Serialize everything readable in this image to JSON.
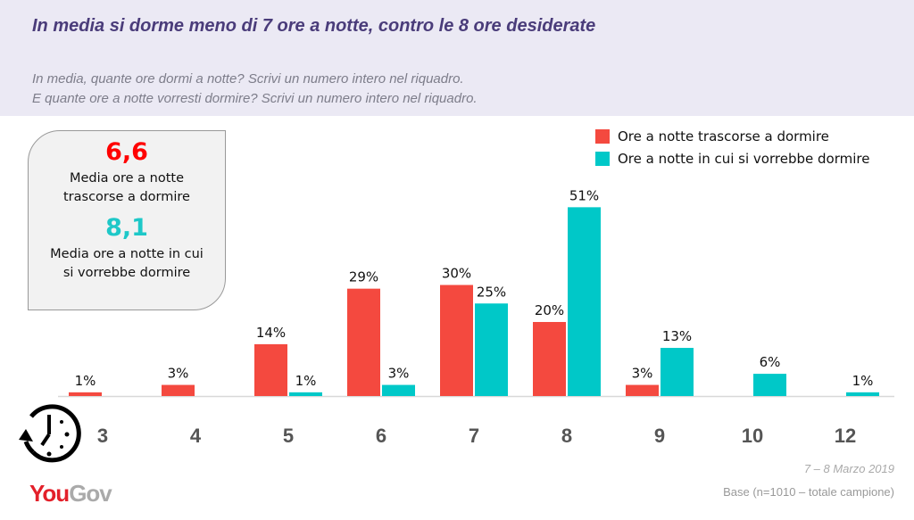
{
  "header": {
    "title": "In media si dorme meno di 7 ore a notte, contro le 8 ore desiderate",
    "question1": "In media, quante ore dormi a notte? Scrivi un numero intero nel riquadro.",
    "question2": "E quante ore a notte vorresti dormire? Scrivi un numero intero nel riquadro."
  },
  "summary": {
    "mean_actual": "6,6",
    "mean_actual_label": "Media ore a notte trascorse a dormire",
    "mean_desired": "8,1",
    "mean_desired_label": "Media ore a notte in cui si vorrebbe dormire"
  },
  "footer": {
    "date": "7 – 8 Marzo 2019",
    "base": "Base (n=1010 – totale campione)",
    "logo": "YouGov"
  },
  "colors": {
    "actual": "#f4493f",
    "desired": "#00c8c8"
  },
  "chart_data": {
    "type": "bar",
    "categories": [
      "3",
      "4",
      "5",
      "6",
      "7",
      "8",
      "9",
      "10",
      "12"
    ],
    "series": [
      {
        "name": "Ore a notte trascorse a dormire",
        "values": [
          1,
          3,
          14,
          29,
          30,
          20,
          3,
          null,
          null
        ]
      },
      {
        "name": "Ore a notte in cui si vorrebbe dormire",
        "values": [
          null,
          null,
          1,
          3,
          25,
          51,
          13,
          6,
          1
        ]
      }
    ],
    "unit": "%",
    "legend": "top-right",
    "grid": false
  }
}
